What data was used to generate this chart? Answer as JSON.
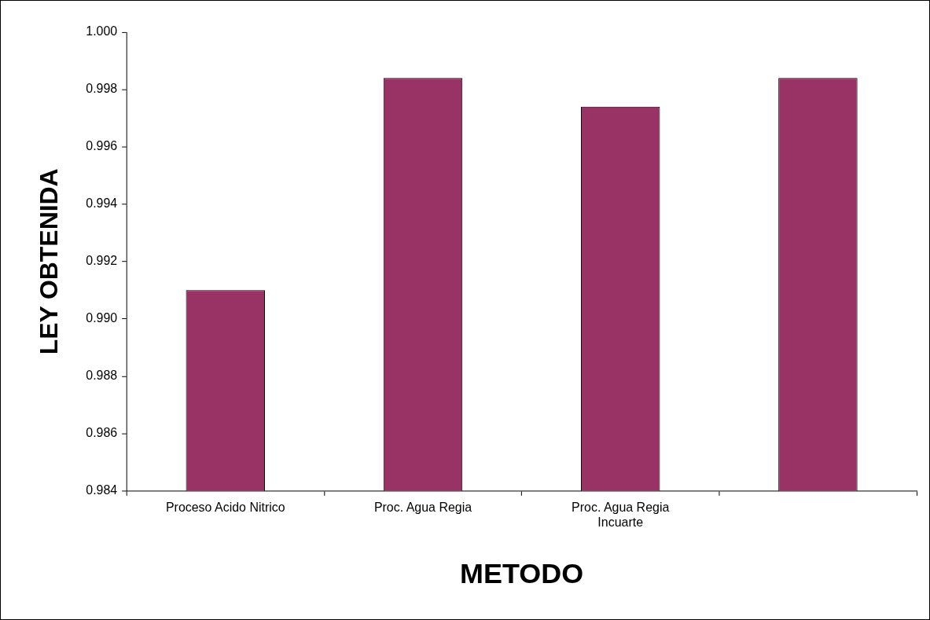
{
  "chart_data": {
    "type": "bar",
    "xlabel": "METODO",
    "ylabel": "LEY OBTENIDA",
    "categories": [
      "Proceso Acido Nitrico",
      "Proc. Agua Regia",
      "Proc. Agua Regia Incuarte",
      null
    ],
    "values": [
      0.991,
      0.9984,
      0.9974,
      0.9984
    ],
    "color": "#993366",
    "ylim": [
      0.984,
      1.0
    ],
    "yticks": [
      {
        "value": 0.984,
        "label": "0.984"
      },
      {
        "value": 0.986,
        "label": "0.986"
      },
      {
        "value": 0.988,
        "label": "0.988"
      },
      {
        "value": 0.99,
        "label": "0.990"
      },
      {
        "value": 0.992,
        "label": "0.992"
      },
      {
        "value": 0.994,
        "label": "0.994"
      },
      {
        "value": 0.996,
        "label": "0.996"
      },
      {
        "value": 0.998,
        "label": "0.998"
      },
      {
        "value": 1.0,
        "label": "1.000"
      }
    ],
    "grid": false,
    "legend": false
  }
}
